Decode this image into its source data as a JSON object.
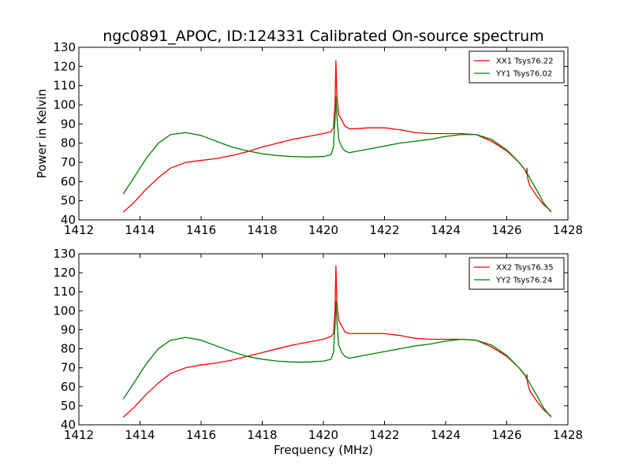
{
  "chart_data": [
    {
      "type": "line",
      "title": "ngc0891_APOC, ID:124331 Calibrated On-source spectrum",
      "xlabel": "",
      "ylabel": "Power in Kelvin",
      "xlim": [
        1412,
        1428
      ],
      "ylim": [
        40,
        130
      ],
      "xticks": [
        1412,
        1414,
        1416,
        1418,
        1420,
        1422,
        1424,
        1426,
        1428
      ],
      "yticks": [
        40,
        50,
        60,
        70,
        80,
        90,
        100,
        110,
        120,
        130
      ],
      "grid": false,
      "legend_position": "top-right",
      "series": [
        {
          "name": "XX1 Tsys76.22",
          "color": "#ff0000",
          "x": [
            1413.45,
            1413.8,
            1414.2,
            1414.6,
            1415.0,
            1415.5,
            1416.0,
            1416.5,
            1417.0,
            1417.5,
            1418.0,
            1418.5,
            1419.0,
            1419.5,
            1420.0,
            1420.25,
            1420.33,
            1420.38,
            1420.41,
            1420.44,
            1420.5,
            1420.6,
            1420.7,
            1420.85,
            1421.0,
            1421.5,
            1422.0,
            1422.5,
            1423.0,
            1423.5,
            1424.0,
            1424.5,
            1425.0,
            1425.5,
            1426.0,
            1426.4,
            1426.6,
            1426.65,
            1426.66,
            1426.67,
            1426.68,
            1426.75,
            1427.0,
            1427.2,
            1427.45
          ],
          "values": [
            44,
            49,
            56,
            62,
            67,
            70,
            71,
            72,
            73.5,
            75.5,
            78,
            80,
            82,
            83.5,
            85,
            86,
            88,
            100,
            123,
            105,
            95,
            92,
            89,
            87.5,
            87.5,
            88,
            88,
            87,
            85.5,
            85,
            85,
            85,
            84.5,
            81,
            76,
            70,
            66,
            64,
            67,
            64,
            62,
            58,
            52,
            48,
            44.5
          ]
        },
        {
          "name": "YY1 Tsys76.02",
          "color": "#008000",
          "x": [
            1413.45,
            1413.8,
            1414.2,
            1414.6,
            1415.0,
            1415.5,
            1416.0,
            1416.5,
            1417.0,
            1417.5,
            1418.0,
            1418.5,
            1419.0,
            1419.5,
            1420.0,
            1420.25,
            1420.33,
            1420.38,
            1420.41,
            1420.44,
            1420.5,
            1420.6,
            1420.7,
            1420.85,
            1421.0,
            1421.5,
            1422.0,
            1422.5,
            1423.0,
            1423.5,
            1424.0,
            1424.5,
            1425.0,
            1425.5,
            1426.0,
            1426.4,
            1426.6,
            1427.0,
            1427.2,
            1427.45
          ],
          "values": [
            53.5,
            62,
            72,
            80,
            84.5,
            85.5,
            84,
            81,
            78,
            76,
            74.5,
            73.5,
            73,
            72.8,
            73,
            74,
            78,
            92,
            104,
            95,
            82,
            78,
            76,
            75,
            75.5,
            77,
            78.5,
            80,
            81,
            82,
            83.5,
            84.5,
            84.5,
            82,
            76.5,
            70,
            66,
            55,
            49,
            44
          ]
        }
      ]
    },
    {
      "type": "line",
      "title": "",
      "xlabel": "Frequency (MHz)",
      "ylabel": "",
      "xlim": [
        1412,
        1428
      ],
      "ylim": [
        40,
        130
      ],
      "xticks": [
        1412,
        1414,
        1416,
        1418,
        1420,
        1422,
        1424,
        1426,
        1428
      ],
      "yticks": [
        40,
        50,
        60,
        70,
        80,
        90,
        100,
        110,
        120,
        130
      ],
      "grid": false,
      "legend_position": "top-right",
      "series": [
        {
          "name": "XX2 Tsys76.35",
          "color": "#ff0000",
          "x": [
            1413.45,
            1413.8,
            1414.2,
            1414.6,
            1415.0,
            1415.5,
            1416.0,
            1416.5,
            1417.0,
            1417.5,
            1418.0,
            1418.5,
            1419.0,
            1419.5,
            1420.0,
            1420.25,
            1420.33,
            1420.38,
            1420.41,
            1420.44,
            1420.5,
            1420.6,
            1420.7,
            1420.85,
            1421.0,
            1421.5,
            1422.0,
            1422.5,
            1423.0,
            1423.5,
            1424.0,
            1424.5,
            1425.0,
            1425.5,
            1426.0,
            1426.4,
            1426.6,
            1426.65,
            1426.66,
            1426.67,
            1426.68,
            1426.75,
            1427.0,
            1427.2,
            1427.45
          ],
          "values": [
            44,
            49,
            56,
            62,
            67,
            70,
            71.5,
            72.5,
            74,
            76,
            78,
            80,
            82,
            83.5,
            85,
            86.5,
            88,
            100,
            123.5,
            105,
            95,
            92,
            89,
            88,
            88,
            88,
            88,
            87,
            85.5,
            85,
            85,
            85,
            84.5,
            81,
            76,
            70,
            66,
            64,
            66.5,
            64,
            62,
            58,
            52,
            48,
            44.5
          ]
        },
        {
          "name": "YY2 Tsys76.24",
          "color": "#008000",
          "x": [
            1413.45,
            1413.8,
            1414.2,
            1414.6,
            1415.0,
            1415.5,
            1416.0,
            1416.5,
            1417.0,
            1417.5,
            1418.0,
            1418.5,
            1419.0,
            1419.5,
            1420.0,
            1420.25,
            1420.33,
            1420.38,
            1420.41,
            1420.44,
            1420.5,
            1420.6,
            1420.7,
            1420.85,
            1421.0,
            1421.5,
            1422.0,
            1422.5,
            1423.0,
            1423.5,
            1424.0,
            1424.5,
            1425.0,
            1425.5,
            1426.0,
            1426.4,
            1426.6,
            1427.0,
            1427.2,
            1427.45
          ],
          "values": [
            53.5,
            62,
            72,
            80,
            84.5,
            86,
            84.5,
            81.5,
            78.5,
            76,
            74.5,
            73.5,
            73,
            73,
            73.5,
            74.5,
            78,
            92,
            105,
            95,
            82,
            78,
            76,
            75,
            75.5,
            77,
            78.5,
            80,
            81.5,
            82.5,
            84,
            85,
            84.5,
            82,
            76.5,
            70,
            66,
            55,
            49,
            44
          ]
        }
      ]
    }
  ]
}
